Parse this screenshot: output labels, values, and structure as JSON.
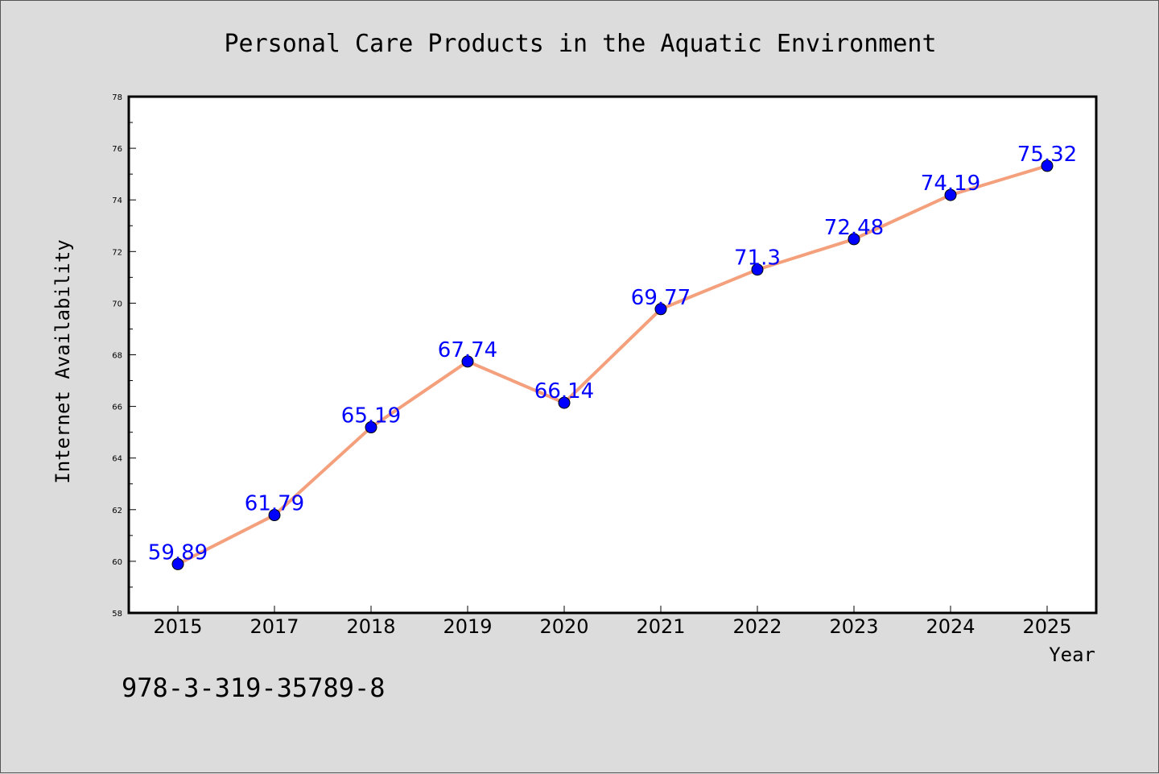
{
  "chart_data": {
    "type": "line",
    "title": "Personal Care Products in the Aquatic Environment",
    "xlabel": "Year",
    "ylabel": "Internet Availability",
    "categories": [
      "2015",
      "2017",
      "2018",
      "2019",
      "2020",
      "2021",
      "2022",
      "2023",
      "2024",
      "2025"
    ],
    "values": [
      59.89,
      61.79,
      65.19,
      67.74,
      66.14,
      69.77,
      71.3,
      72.48,
      74.19,
      75.32
    ],
    "data_labels": [
      "59.89",
      "61.79",
      "65.19",
      "67.74",
      "66.14",
      "69.77",
      "71.3",
      "72.48",
      "74.19",
      "75.32"
    ],
    "ylim": [
      58,
      78
    ],
    "yticks": [
      "58",
      "60",
      "62",
      "64",
      "66",
      "68",
      "70",
      "72",
      "74",
      "76",
      "78"
    ],
    "grid": false,
    "line_color": "#f4a07c",
    "marker_color": "#0000ff",
    "label_color": "#0000ff"
  },
  "footer": {
    "isbn": "978-3-319-35789-8"
  }
}
